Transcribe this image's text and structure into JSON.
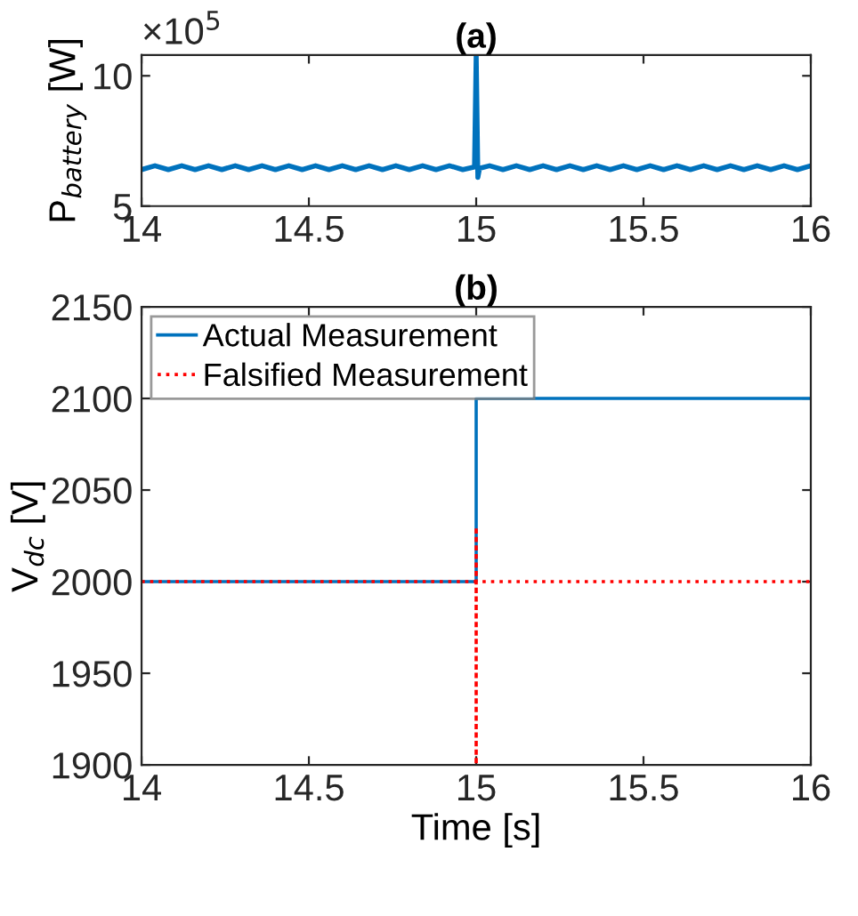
{
  "chart_data": [
    {
      "type": "line",
      "title": "(a)",
      "ylabel": "P$_{battery}$ [W]",
      "annotations": [
        "×10$^{5}$"
      ],
      "xlim": [
        14,
        16
      ],
      "xticks": [
        14,
        14.5,
        15,
        15.5,
        16
      ],
      "ylim": [
        5,
        10.8
      ],
      "yticks": [
        5,
        10
      ],
      "grid": false,
      "legend": false,
      "line_style": "solid",
      "series": [
        {
          "color": "#0072bd",
          "x": [
            14,
            14.04,
            14.08,
            14.12,
            14.16,
            14.2,
            14.24,
            14.28,
            14.32,
            14.36,
            14.4,
            14.44,
            14.48,
            14.52,
            14.56,
            14.6,
            14.64,
            14.68,
            14.72,
            14.76,
            14.8,
            14.84,
            14.88,
            14.92,
            14.96,
            14.995,
            15,
            15.005,
            15.01,
            15.04,
            15.08,
            15.12,
            15.16,
            15.2,
            15.24,
            15.28,
            15.32,
            15.36,
            15.4,
            15.44,
            15.48,
            15.52,
            15.56,
            15.6,
            15.64,
            15.68,
            15.72,
            15.76,
            15.8,
            15.84,
            15.88,
            15.92,
            15.96,
            16
          ],
          "values": [
            6.4,
            6.55,
            6.4,
            6.55,
            6.4,
            6.55,
            6.4,
            6.55,
            6.4,
            6.55,
            6.4,
            6.55,
            6.4,
            6.55,
            6.4,
            6.55,
            6.4,
            6.55,
            6.4,
            6.55,
            6.4,
            6.55,
            6.4,
            6.55,
            6.4,
            6.5,
            10.8,
            6.1,
            6.45,
            6.55,
            6.4,
            6.55,
            6.4,
            6.55,
            6.4,
            6.55,
            6.4,
            6.55,
            6.4,
            6.55,
            6.4,
            6.55,
            6.4,
            6.55,
            6.4,
            6.55,
            6.4,
            6.55,
            6.4,
            6.55,
            6.4,
            6.55,
            6.4,
            6.55
          ]
        }
      ]
    },
    {
      "type": "line",
      "title": "(b)",
      "xlabel": "Time [s]",
      "ylabel": "V$_{dc}$ [V]",
      "xlim": [
        14,
        16
      ],
      "xticks": [
        14,
        14.5,
        15,
        15.5,
        16
      ],
      "ylim": [
        1900,
        2150
      ],
      "yticks": [
        1900,
        1950,
        2000,
        2050,
        2100,
        2150
      ],
      "grid": false,
      "legend": "top left",
      "series": [
        {
          "name": "Actual Measurement",
          "color": "#0072bd",
          "line_style": "solid",
          "x": [
            14,
            15,
            15,
            16
          ],
          "values": [
            2000,
            2000,
            2100,
            2100
          ]
        },
        {
          "name": "Falsified Measurement",
          "color": "#ff0000",
          "line_style": "dotted",
          "x": [
            14,
            15,
            15,
            15,
            15,
            16
          ],
          "values": [
            2000,
            2000,
            1900,
            2030,
            2000,
            2000
          ]
        }
      ]
    }
  ]
}
